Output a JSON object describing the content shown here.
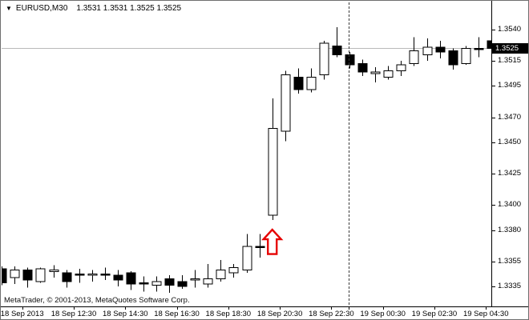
{
  "window": {
    "title_symbol": "EURUSD,M30",
    "title_ohlc": "1.3531 1.3531 1.3525 1.3525",
    "dropdown_glyph": "▼",
    "copyright": "MetaTrader, © 2001-2013, MetaQuotes Software Corp."
  },
  "axis": {
    "current_price": "1.3525",
    "y_tick_values": [
      1.354,
      1.3515,
      1.3495,
      1.347,
      1.345,
      1.3425,
      1.34,
      1.338,
      1.3355,
      1.3335
    ],
    "x_labels": [
      "18 Sep 2013",
      "18 Sep 12:30",
      "18 Sep 14:30",
      "18 Sep 16:30",
      "18 Sep 18:30",
      "18 Sep 20:30",
      "18 Sep 22:30",
      "19 Sep 00:30",
      "19 Sep 02:30",
      "19 Sep 04:30"
    ]
  },
  "chart_data": {
    "type": "candlestick",
    "symbol": "EURUSD",
    "timeframe": "M30",
    "title": "EURUSD,M30 1.3531 1.3531 1.3525 1.3525",
    "ylabel": "price",
    "price_range": [
      1.333,
      1.3545
    ],
    "grid": "off",
    "current_bid": 1.3525,
    "y_axis_ticks": [
      1.354,
      1.3515,
      1.3495,
      1.347,
      1.345,
      1.3425,
      1.34,
      1.338,
      1.3355,
      1.3335
    ],
    "x_axis_tick_labels": [
      "18 Sep 2013",
      "18 Sep 12:30",
      "18 Sep 14:30",
      "18 Sep 16:30",
      "18 Sep 18:30",
      "18 Sep 20:30",
      "18 Sep 22:30",
      "19 Sep 00:30",
      "19 Sep 02:30",
      "19 Sep 04:30"
    ],
    "day_separator_after_time": "18 Sep 23:00",
    "annotations": [
      {
        "type": "block-arrow-up",
        "color": "#e60000",
        "fill": "#ffffff",
        "below_candle_time": "18 Sep 20:00"
      }
    ],
    "candles": [
      {
        "time": "18 Sep 09:30",
        "o": 1.3349,
        "h": 1.3351,
        "l": 1.3336,
        "c": 1.3338
      },
      {
        "time": "18 Sep 10:00",
        "o": 1.3342,
        "h": 1.3351,
        "l": 1.3337,
        "c": 1.3348
      },
      {
        "time": "18 Sep 10:30",
        "o": 1.3348,
        "h": 1.335,
        "l": 1.3334,
        "c": 1.334
      },
      {
        "time": "18 Sep 11:00",
        "o": 1.3339,
        "h": 1.335,
        "l": 1.3338,
        "c": 1.3349
      },
      {
        "time": "18 Sep 11:30",
        "o": 1.3347,
        "h": 1.3352,
        "l": 1.3342,
        "c": 1.3348
      },
      {
        "time": "18 Sep 12:00",
        "o": 1.3346,
        "h": 1.3348,
        "l": 1.3334,
        "c": 1.3339
      },
      {
        "time": "18 Sep 12:30",
        "o": 1.3345,
        "h": 1.3349,
        "l": 1.3338,
        "c": 1.3344
      },
      {
        "time": "18 Sep 13:00",
        "o": 1.3344,
        "h": 1.3348,
        "l": 1.3339,
        "c": 1.3345
      },
      {
        "time": "18 Sep 13:30",
        "o": 1.3345,
        "h": 1.335,
        "l": 1.334,
        "c": 1.3344
      },
      {
        "time": "18 Sep 14:00",
        "o": 1.3344,
        "h": 1.3348,
        "l": 1.3335,
        "c": 1.334
      },
      {
        "time": "18 Sep 14:30",
        "o": 1.3346,
        "h": 1.3347,
        "l": 1.3332,
        "c": 1.3337
      },
      {
        "time": "18 Sep 15:00",
        "o": 1.3338,
        "h": 1.3343,
        "l": 1.3331,
        "c": 1.3337
      },
      {
        "time": "18 Sep 15:30",
        "o": 1.3336,
        "h": 1.3343,
        "l": 1.3331,
        "c": 1.3339
      },
      {
        "time": "18 Sep 16:00",
        "o": 1.3341,
        "h": 1.3344,
        "l": 1.333,
        "c": 1.3336
      },
      {
        "time": "18 Sep 16:30",
        "o": 1.3339,
        "h": 1.3344,
        "l": 1.3333,
        "c": 1.3335
      },
      {
        "time": "18 Sep 17:00",
        "o": 1.334,
        "h": 1.3348,
        "l": 1.3334,
        "c": 1.3341
      },
      {
        "time": "18 Sep 17:30",
        "o": 1.3337,
        "h": 1.3353,
        "l": 1.3334,
        "c": 1.3341
      },
      {
        "time": "18 Sep 18:00",
        "o": 1.3341,
        "h": 1.3356,
        "l": 1.3339,
        "c": 1.3348
      },
      {
        "time": "18 Sep 18:30",
        "o": 1.3346,
        "h": 1.3353,
        "l": 1.3342,
        "c": 1.335
      },
      {
        "time": "18 Sep 19:00",
        "o": 1.3348,
        "h": 1.3377,
        "l": 1.3346,
        "c": 1.3367
      },
      {
        "time": "18 Sep 19:30",
        "o": 1.3367,
        "h": 1.3377,
        "l": 1.3358,
        "c": 1.3366
      },
      {
        "time": "18 Sep 20:00",
        "o": 1.3392,
        "h": 1.3485,
        "l": 1.3388,
        "c": 1.3461
      },
      {
        "time": "18 Sep 20:30",
        "o": 1.3459,
        "h": 1.3507,
        "l": 1.3451,
        "c": 1.3504
      },
      {
        "time": "18 Sep 21:00",
        "o": 1.3502,
        "h": 1.3509,
        "l": 1.3489,
        "c": 1.3492
      },
      {
        "time": "18 Sep 21:30",
        "o": 1.3492,
        "h": 1.3509,
        "l": 1.349,
        "c": 1.3502
      },
      {
        "time": "18 Sep 22:00",
        "o": 1.3504,
        "h": 1.3531,
        "l": 1.35,
        "c": 1.3529
      },
      {
        "time": "18 Sep 22:30",
        "o": 1.3527,
        "h": 1.3542,
        "l": 1.3518,
        "c": 1.352
      },
      {
        "time": "18 Sep 23:00",
        "o": 1.352,
        "h": 1.3522,
        "l": 1.3509,
        "c": 1.3512
      },
      {
        "time": "18 Sep 23:30",
        "o": 1.3513,
        "h": 1.3516,
        "l": 1.3503,
        "c": 1.3506
      },
      {
        "time": "19 Sep 00:00",
        "o": 1.3505,
        "h": 1.351,
        "l": 1.3498,
        "c": 1.3506
      },
      {
        "time": "19 Sep 00:30",
        "o": 1.3502,
        "h": 1.3511,
        "l": 1.35,
        "c": 1.3507
      },
      {
        "time": "19 Sep 01:00",
        "o": 1.3507,
        "h": 1.3515,
        "l": 1.3503,
        "c": 1.3512
      },
      {
        "time": "19 Sep 01:30",
        "o": 1.3513,
        "h": 1.3534,
        "l": 1.3511,
        "c": 1.3523
      },
      {
        "time": "19 Sep 02:00",
        "o": 1.352,
        "h": 1.3533,
        "l": 1.3515,
        "c": 1.3526
      },
      {
        "time": "19 Sep 02:30",
        "o": 1.3526,
        "h": 1.3531,
        "l": 1.3517,
        "c": 1.3522
      },
      {
        "time": "19 Sep 03:00",
        "o": 1.3523,
        "h": 1.3525,
        "l": 1.3508,
        "c": 1.3512
      },
      {
        "time": "19 Sep 03:30",
        "o": 1.3513,
        "h": 1.3527,
        "l": 1.3512,
        "c": 1.3525
      },
      {
        "time": "19 Sep 04:00",
        "o": 1.3525,
        "h": 1.3534,
        "l": 1.3518,
        "c": 1.3524
      },
      {
        "time": "19 Sep 04:30",
        "o": 1.3531,
        "h": 1.3531,
        "l": 1.3525,
        "c": 1.3525
      }
    ]
  }
}
